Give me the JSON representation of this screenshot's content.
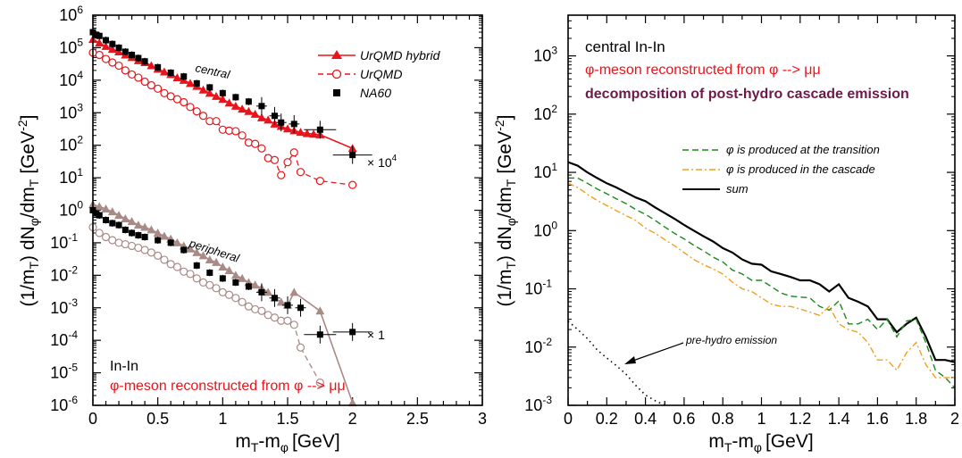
{
  "chart_data": [
    {
      "type": "scatter",
      "xlabel_main": "m",
      "xlabel_sub1": "T",
      "xlabel_mid": "-m",
      "xlabel_sub2": "φ",
      "xlabel_unit": "[GeV]",
      "ylabel_pre": "(1/m",
      "ylabel_sub1": "T",
      "ylabel_mid": ") dN",
      "ylabel_sub2": "φ",
      "ylabel_mid2": "/dm",
      "ylabel_sub3": "T",
      "ylabel_unit": "[GeV",
      "ylabel_exp": "-2",
      "ylabel_close": "]",
      "xlim": [
        0,
        3
      ],
      "ylim": [
        1e-06,
        1000000.0
      ],
      "yscale": "log",
      "x_ticks": [
        "0",
        "0.5",
        "1",
        "1.5",
        "2",
        "2.5",
        "3"
      ],
      "y_ticks": [
        "-6",
        "-5",
        "-4",
        "-3",
        "-2",
        "-1",
        "0",
        "1",
        "2",
        "3",
        "4",
        "5",
        "6"
      ],
      "legend": {
        "hybrid": "UrQMD hybrid",
        "urqmd": "UrQMD",
        "na60": "NA60"
      },
      "annotations": {
        "central": "central",
        "peripheral": "peripheral",
        "scale_central": "× 10",
        "scale_central_exp": "4",
        "scale_peripheral": "× 1",
        "system": "In-In",
        "reconstruction": "φ-meson reconstructed from φ --> μμ"
      },
      "colors": {
        "central": "#e8141b",
        "peripheral": "#a88a86",
        "data": "#000000",
        "text_red": "#e8141b"
      },
      "series": [
        {
          "name": "UrQMD hybrid",
          "group": "central",
          "x": [
            0.0,
            0.05,
            0.1,
            0.15,
            0.2,
            0.25,
            0.3,
            0.35,
            0.4,
            0.45,
            0.5,
            0.55,
            0.6,
            0.65,
            0.7,
            0.75,
            0.8,
            0.85,
            0.9,
            0.95,
            1.0,
            1.05,
            1.1,
            1.15,
            1.2,
            1.25,
            1.3,
            1.35,
            1.4,
            1.45,
            1.5,
            1.55,
            1.6,
            1.65,
            1.7,
            1.75,
            2.0
          ],
          "y": [
            180000,
            140000,
            110000,
            90000,
            75000,
            60000,
            50000,
            40000,
            35000,
            28000,
            22000,
            18000,
            15000,
            12000,
            10000,
            8000,
            6500,
            5000,
            4000,
            3200,
            2600,
            2000,
            1600,
            1300,
            1100,
            900,
            700,
            600,
            450,
            380,
            320,
            280,
            250,
            230,
            220,
            210,
            80
          ]
        },
        {
          "name": "UrQMD",
          "group": "central",
          "x": [
            0.0,
            0.05,
            0.1,
            0.15,
            0.2,
            0.25,
            0.3,
            0.35,
            0.4,
            0.45,
            0.5,
            0.55,
            0.6,
            0.65,
            0.7,
            0.75,
            0.8,
            0.85,
            0.9,
            0.95,
            1.0,
            1.05,
            1.1,
            1.15,
            1.2,
            1.25,
            1.3,
            1.35,
            1.4,
            1.45,
            1.5,
            1.55,
            1.6,
            1.75,
            2.0
          ],
          "y": [
            70000,
            60000,
            45000,
            35000,
            28000,
            20000,
            15000,
            12000,
            9000,
            7000,
            5500,
            4000,
            3200,
            2600,
            2100,
            1500,
            1100,
            800,
            550,
            550,
            300,
            280,
            270,
            200,
            120,
            110,
            80,
            40,
            35,
            12,
            30,
            60,
            15,
            8,
            6
          ]
        },
        {
          "name": "NA60",
          "group": "central",
          "x": [
            0.0,
            0.025,
            0.05,
            0.1,
            0.15,
            0.2,
            0.25,
            0.3,
            0.35,
            0.4,
            0.5,
            0.6,
            0.7,
            0.8,
            0.9,
            1.0,
            1.1,
            1.2,
            1.3,
            1.4,
            1.45,
            1.55,
            1.75,
            2.0
          ],
          "y": [
            300000,
            250000,
            230000,
            170000,
            130000,
            100000,
            75000,
            60000,
            48000,
            38000,
            25000,
            17000,
            13000,
            8000,
            6000,
            4000,
            3000,
            2200,
            1600,
            800,
            500,
            450,
            300,
            50
          ]
        },
        {
          "name": "UrQMD hybrid",
          "group": "peripheral",
          "x": [
            0.0,
            0.05,
            0.1,
            0.15,
            0.2,
            0.25,
            0.3,
            0.35,
            0.4,
            0.45,
            0.5,
            0.55,
            0.6,
            0.65,
            0.7,
            0.75,
            0.8,
            0.85,
            0.9,
            0.95,
            1.0,
            1.05,
            1.1,
            1.15,
            1.2,
            1.25,
            1.3,
            1.35,
            1.4,
            1.45,
            1.5,
            1.55,
            1.75,
            2.0
          ],
          "y": [
            1.5,
            1.3,
            1.1,
            0.9,
            0.7,
            0.55,
            0.45,
            0.35,
            0.3,
            0.25,
            0.2,
            0.16,
            0.13,
            0.1,
            0.08,
            0.065,
            0.05,
            0.04,
            0.03,
            0.025,
            0.018,
            0.014,
            0.01,
            0.008,
            0.006,
            0.005,
            0.004,
            0.003,
            0.002,
            0.0015,
            0.0012,
            0.003,
            0.0008,
            1.2e-06
          ]
        },
        {
          "name": "UrQMD",
          "group": "peripheral",
          "x": [
            0.0,
            0.05,
            0.1,
            0.15,
            0.2,
            0.25,
            0.3,
            0.35,
            0.4,
            0.45,
            0.5,
            0.55,
            0.6,
            0.65,
            0.7,
            0.75,
            0.8,
            0.85,
            0.9,
            0.95,
            1.0,
            1.05,
            1.1,
            1.15,
            1.2,
            1.25,
            1.3,
            1.35,
            1.4,
            1.45,
            1.5,
            1.55,
            1.6,
            1.75
          ],
          "y": [
            0.3,
            0.2,
            0.15,
            0.12,
            0.1,
            0.09,
            0.08,
            0.07,
            0.06,
            0.05,
            0.04,
            0.03,
            0.022,
            0.018,
            0.013,
            0.011,
            0.008,
            0.006,
            0.005,
            0.004,
            0.003,
            0.0025,
            0.002,
            0.0015,
            0.0011,
            0.0009,
            0.0008,
            0.0006,
            0.0005,
            0.0004,
            0.0004,
            0.0003,
            6e-05,
            5e-06
          ]
        },
        {
          "name": "NA60",
          "group": "peripheral",
          "x": [
            0.0,
            0.025,
            0.05,
            0.1,
            0.15,
            0.2,
            0.25,
            0.3,
            0.35,
            0.4,
            0.5,
            0.6,
            0.7,
            0.8,
            0.9,
            1.0,
            1.1,
            1.2,
            1.3,
            1.4,
            1.5,
            1.6,
            1.75,
            2.0
          ],
          "y": [
            1.0,
            0.8,
            0.7,
            0.5,
            0.4,
            0.35,
            0.25,
            0.2,
            0.17,
            0.15,
            0.12,
            0.1,
            0.06,
            0.02,
            0.012,
            0.008,
            0.006,
            0.0045,
            0.003,
            0.002,
            0.0012,
            0.001,
            0.00015,
            0.00018
          ]
        }
      ]
    },
    {
      "type": "line",
      "xlabel_main": "m",
      "xlabel_sub1": "T",
      "xlabel_mid": "-m",
      "xlabel_sub2": "φ",
      "xlabel_unit": "[GeV]",
      "ylabel_pre": "(1/m",
      "ylabel_sub1": "T",
      "ylabel_mid": ") dN",
      "ylabel_sub2": "φ",
      "ylabel_mid2": "/dm",
      "ylabel_sub3": "T",
      "ylabel_unit": "[GeV",
      "ylabel_exp": "-2",
      "ylabel_close": "]",
      "xlim": [
        0,
        2
      ],
      "ylim": [
        0.001,
        5000
      ],
      "yscale": "log",
      "x_ticks": [
        "0",
        "0.2",
        "0.4",
        "0.6",
        "0.8",
        "1",
        "1.2",
        "1.4",
        "1.6",
        "1.8",
        "2"
      ],
      "y_ticks": [
        "-3",
        "-2",
        "-1",
        "0",
        "1",
        "2",
        "3"
      ],
      "texts": {
        "title1": "central In-In",
        "title2": "φ-meson reconstructed from φ --> μμ",
        "title3": "decomposition of post-hydro cascade emission",
        "pre_hydro": "pre-hydro emission"
      },
      "legend": {
        "transition": "φ is produced at the transition",
        "cascade": "φ  is produced in the cascade",
        "sum": "sum"
      },
      "colors": {
        "transition": "#1a8a1a",
        "cascade": "#f0a020",
        "sum": "#000000",
        "pre": "#000000",
        "text_red": "#e8141b",
        "text_purple": "#6b1a4a"
      },
      "series": [
        {
          "name": "sum",
          "x": [
            0.0,
            0.05,
            0.1,
            0.15,
            0.2,
            0.25,
            0.3,
            0.35,
            0.4,
            0.45,
            0.5,
            0.55,
            0.6,
            0.65,
            0.7,
            0.75,
            0.8,
            0.85,
            0.9,
            0.95,
            1.0,
            1.05,
            1.1,
            1.15,
            1.2,
            1.25,
            1.3,
            1.35,
            1.4,
            1.45,
            1.5,
            1.55,
            1.6,
            1.65,
            1.7,
            1.75,
            1.8,
            1.85,
            1.9,
            1.95,
            2.0
          ],
          "y": [
            15,
            13,
            10,
            8,
            6.5,
            5.5,
            4.5,
            3.7,
            3.2,
            2.5,
            2.0,
            1.6,
            1.25,
            1.0,
            0.8,
            0.65,
            0.5,
            0.42,
            0.32,
            0.27,
            0.26,
            0.2,
            0.18,
            0.16,
            0.14,
            0.14,
            0.12,
            0.09,
            0.12,
            0.07,
            0.06,
            0.05,
            0.03,
            0.03,
            0.018,
            0.025,
            0.032,
            0.015,
            0.006,
            0.006,
            0.0055
          ]
        },
        {
          "name": "φ is produced at the transition",
          "x": [
            0.0,
            0.05,
            0.1,
            0.15,
            0.2,
            0.25,
            0.3,
            0.35,
            0.4,
            0.45,
            0.5,
            0.55,
            0.6,
            0.65,
            0.7,
            0.75,
            0.8,
            0.85,
            0.9,
            0.95,
            1.0,
            1.05,
            1.1,
            1.15,
            1.2,
            1.25,
            1.3,
            1.35,
            1.4,
            1.45,
            1.5,
            1.55,
            1.6,
            1.65,
            1.7,
            1.75,
            1.8,
            1.85,
            1.9,
            1.95,
            2.0
          ],
          "y": [
            8,
            8,
            6.5,
            5.2,
            4.3,
            3.5,
            2.9,
            2.3,
            1.9,
            1.5,
            1.15,
            0.9,
            0.72,
            0.56,
            0.45,
            0.35,
            0.29,
            0.21,
            0.18,
            0.14,
            0.14,
            0.11,
            0.085,
            0.075,
            0.072,
            0.07,
            0.05,
            0.043,
            0.062,
            0.025,
            0.025,
            0.03,
            0.02,
            0.03,
            0.015,
            0.028,
            0.03,
            0.012,
            0.004,
            0.003,
            0.002
          ]
        },
        {
          "name": "φ  is produced in the cascade",
          "x": [
            0.0,
            0.05,
            0.1,
            0.15,
            0.2,
            0.25,
            0.3,
            0.35,
            0.4,
            0.45,
            0.5,
            0.55,
            0.6,
            0.65,
            0.7,
            0.75,
            0.8,
            0.85,
            0.9,
            0.95,
            1.0,
            1.05,
            1.1,
            1.15,
            1.2,
            1.25,
            1.3,
            1.35,
            1.4,
            1.45,
            1.5,
            1.55,
            1.6,
            1.65,
            1.7,
            1.75,
            1.8,
            1.85,
            1.9,
            1.95,
            2.0
          ],
          "y": [
            6.5,
            5.5,
            4.2,
            3.3,
            2.7,
            2.2,
            1.8,
            1.5,
            1.1,
            0.9,
            0.7,
            0.55,
            0.42,
            0.32,
            0.26,
            0.22,
            0.18,
            0.13,
            0.1,
            0.09,
            0.07,
            0.055,
            0.05,
            0.05,
            0.045,
            0.04,
            0.035,
            0.05,
            0.025,
            0.02,
            0.018,
            0.012,
            0.006,
            0.006,
            0.004,
            0.008,
            0.012,
            0.005,
            0.003,
            0.003,
            0.003
          ]
        },
        {
          "name": "pre-hydro emission",
          "x": [
            0.0,
            0.05,
            0.1,
            0.15,
            0.2,
            0.25,
            0.3,
            0.35,
            0.4,
            0.45,
            0.5
          ],
          "y": [
            0.028,
            0.02,
            0.014,
            0.009,
            0.0065,
            0.0048,
            0.0034,
            0.0022,
            0.0015,
            0.0012,
            0.00095
          ]
        }
      ]
    }
  ]
}
